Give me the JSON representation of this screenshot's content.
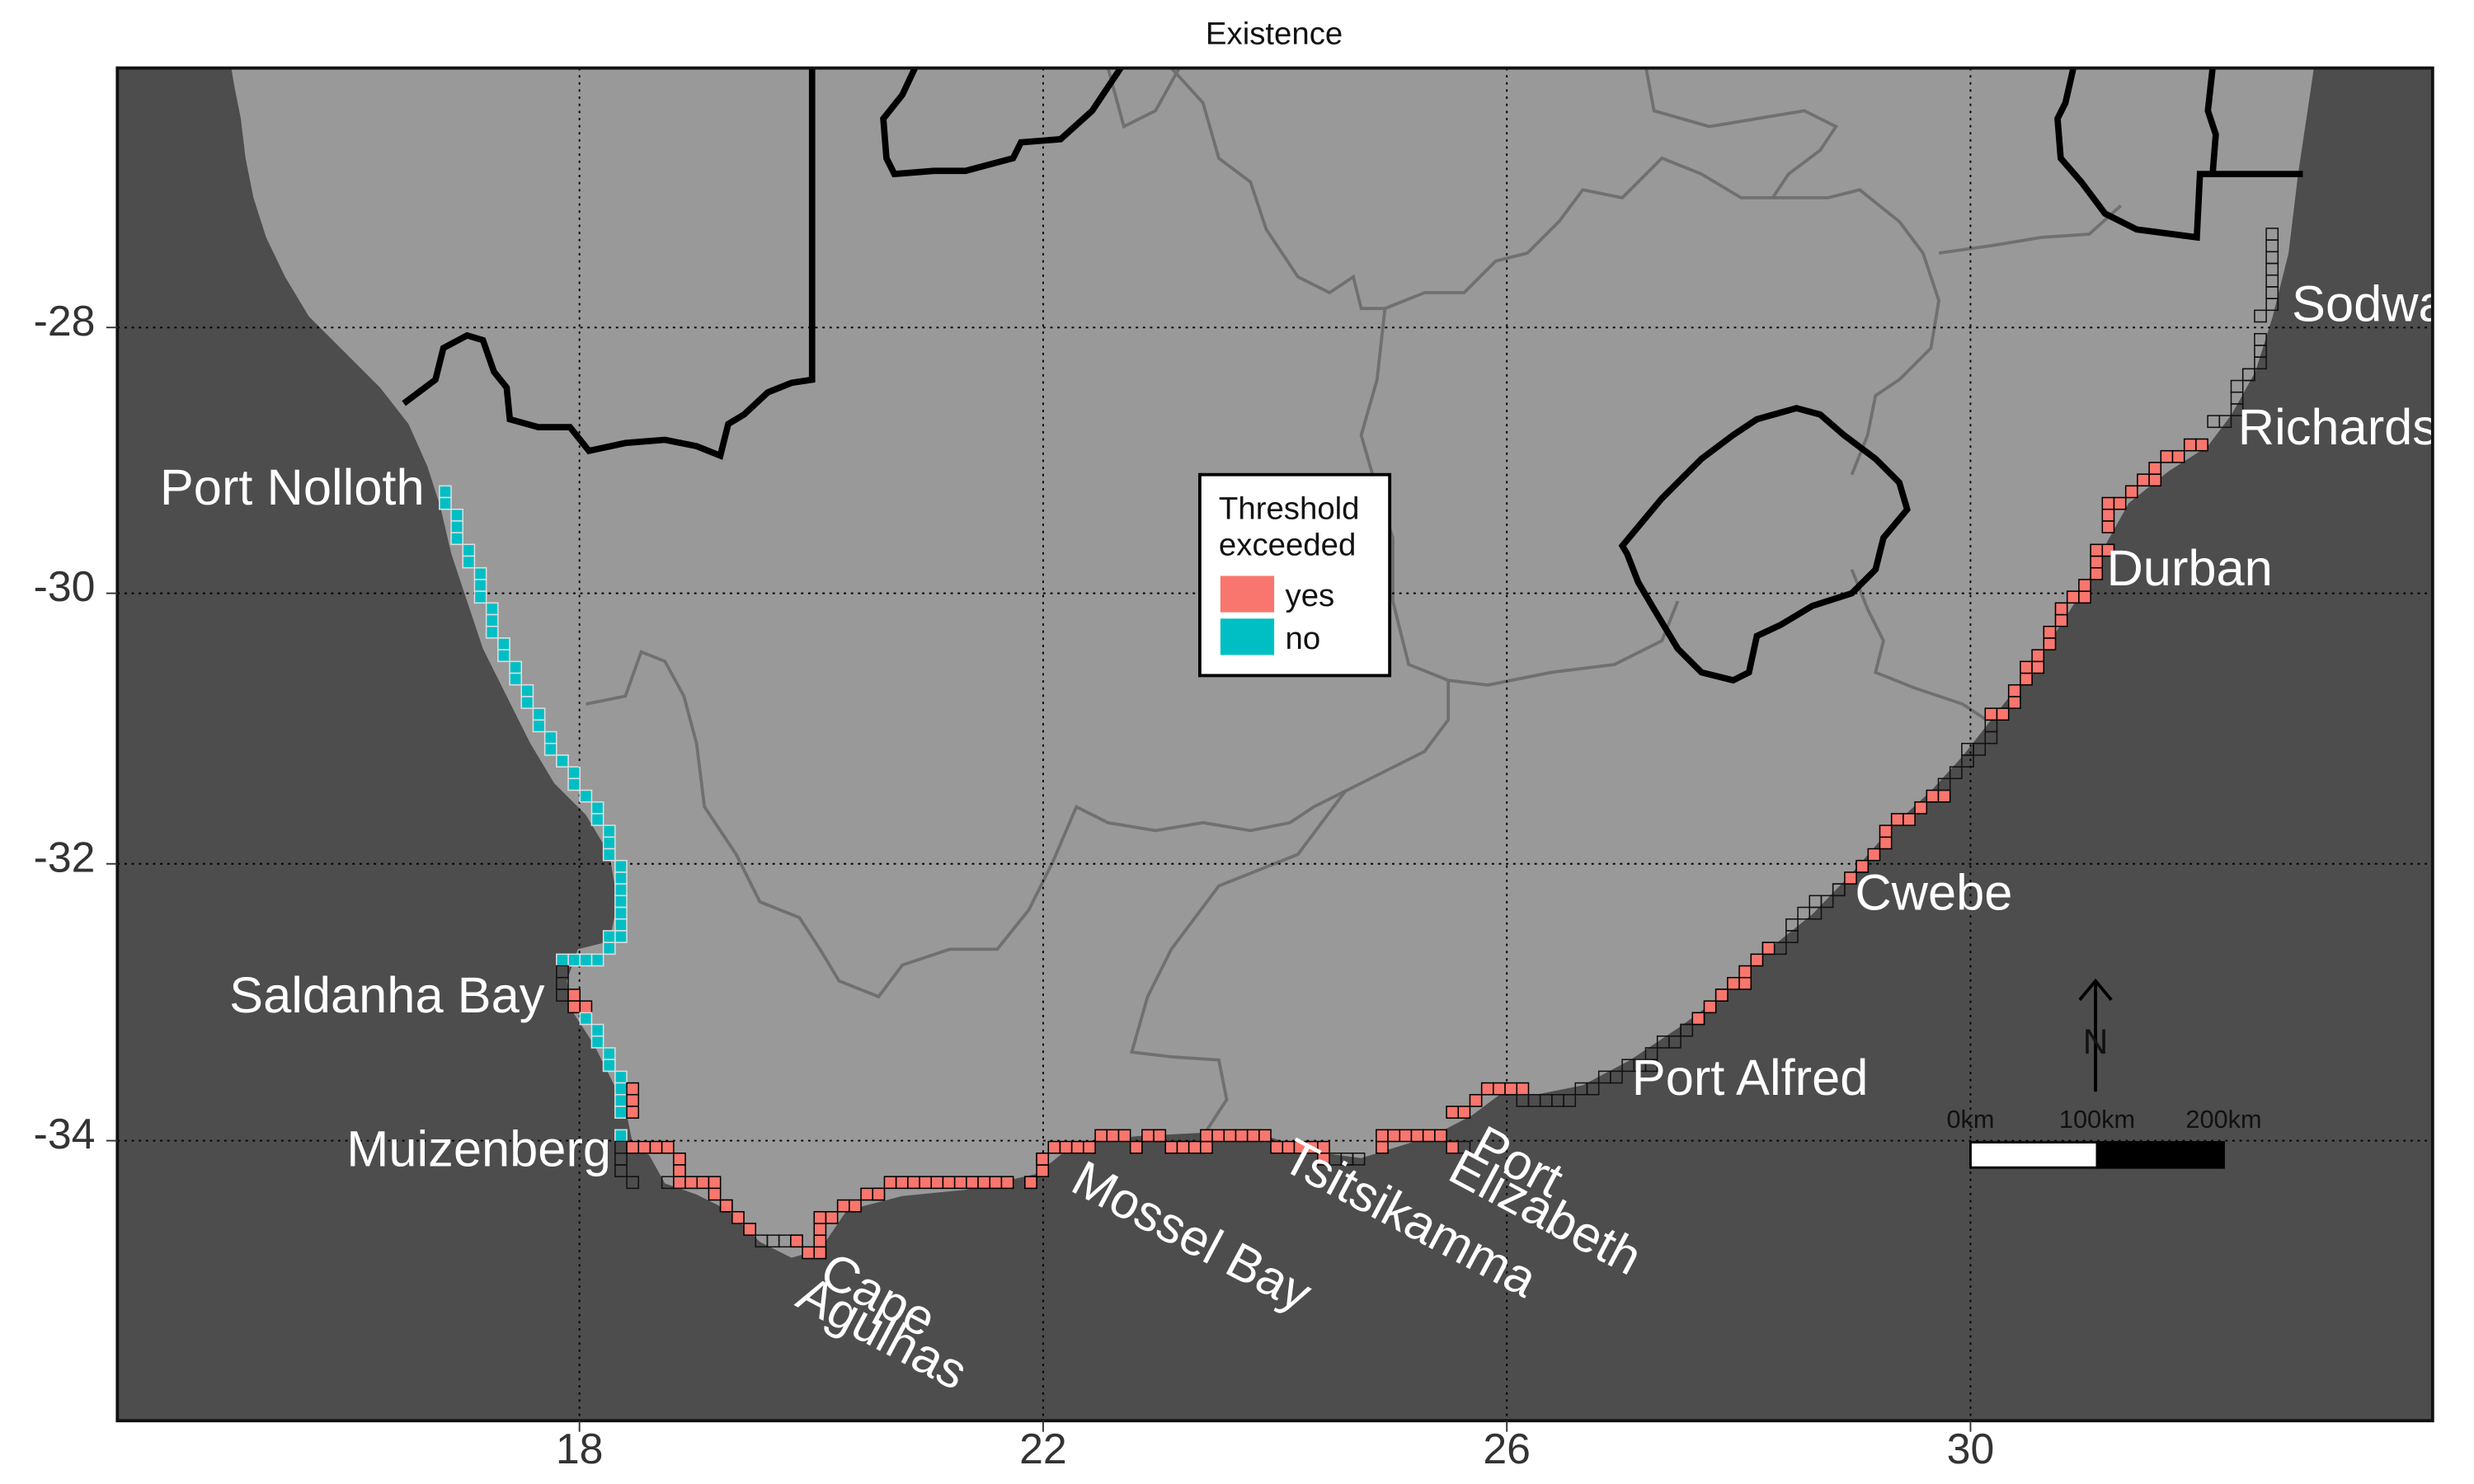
{
  "title": "Existence",
  "map": {
    "type": "coastal grid map",
    "x_axis": {
      "ticks": [
        18,
        22,
        26,
        30
      ],
      "labels": [
        "18",
        "22",
        "26",
        "30"
      ]
    },
    "y_axis": {
      "ticks": [
        -28,
        -30,
        -32,
        -34
      ],
      "labels": [
        "-28",
        "-30",
        "-32",
        "-34"
      ]
    },
    "gridlines": "dotted at labelled ticks",
    "colors": {
      "ocean": "#4d4d4d",
      "land": "#999999",
      "yes": "#f8766d",
      "no": "#00bfc4",
      "unknown_cell": "#bdbdbd",
      "frame": "#111111"
    }
  },
  "legend": {
    "title_line1": "Threshold",
    "title_line2": "exceeded",
    "items": [
      {
        "label": "yes",
        "color": "#f8766d"
      },
      {
        "label": "no",
        "color": "#00bfc4"
      }
    ],
    "placement": "center"
  },
  "places": [
    {
      "id": "sodwana",
      "name": "Sodwana"
    },
    {
      "id": "richards-bay",
      "name": "Richards Bay"
    },
    {
      "id": "durban",
      "name": "Durban"
    },
    {
      "id": "cwebe",
      "name": "Cwebe"
    },
    {
      "id": "port-alfred",
      "name": "Port Alfred"
    },
    {
      "id": "port-elizabeth",
      "name": "Port Elizabeth",
      "lines": [
        "Port",
        "Elizabeth"
      ]
    },
    {
      "id": "tsitsikamma",
      "name": "Tsitsikamma"
    },
    {
      "id": "mossel-bay",
      "name": "Mossel Bay"
    },
    {
      "id": "cape-agulhas",
      "name": "Cape Agulhas",
      "lines": [
        "Cape",
        "Agulhas"
      ]
    },
    {
      "id": "muizenberg",
      "name": "Muizenberg"
    },
    {
      "id": "saldanha-bay",
      "name": "Saldanha Bay"
    },
    {
      "id": "port-nolloth",
      "name": "Port Nolloth"
    }
  ],
  "scale_bar": {
    "labels": [
      "0km",
      "100km",
      "200km"
    ]
  },
  "north_arrow": {
    "label": "N"
  },
  "chart_data": {
    "type": "map-grid",
    "x_ticks": [
      18,
      22,
      26,
      30
    ],
    "y_ticks": [
      -28,
      -30,
      -32,
      -34
    ],
    "categories": [
      "yes",
      "no"
    ],
    "west_coast_cells": "no",
    "south_and_east_coast_cells": "yes",
    "some_cells": "no fill"
  }
}
